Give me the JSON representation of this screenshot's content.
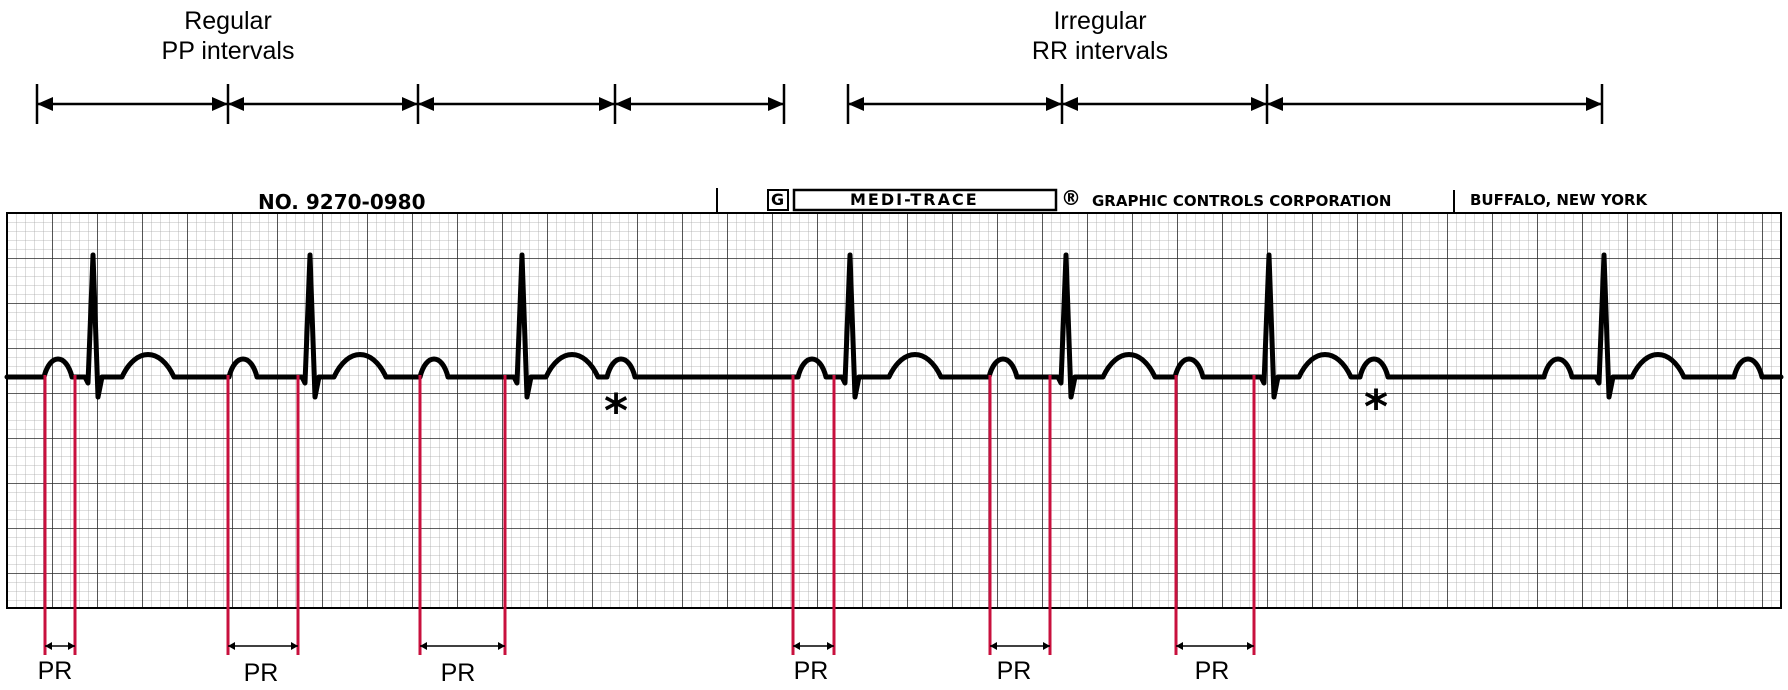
{
  "captions": {
    "regular": {
      "line1": "Regular",
      "line2": "PP intervals"
    },
    "irregular": {
      "line1": "Irregular",
      "line2": "RR intervals"
    }
  },
  "strip": {
    "serial": "NO. 9270-0980",
    "logo_letter": "G",
    "brand": "MEDI-TRACE",
    "registered": "®",
    "company": "GRAPHIC CONTROLS CORPORATION",
    "location": "BUFFALO, NEW YORK"
  },
  "markers": {
    "dropped_beat": "*"
  },
  "pr_label": "PR",
  "colors": {
    "pr_line": "#c8103e",
    "trace": "#000000",
    "grid_minor": "#9a9a9a",
    "grid_major": "#2a2a2a"
  },
  "icons": [
    "double-arrow-icon",
    "asterisk-icon"
  ]
}
